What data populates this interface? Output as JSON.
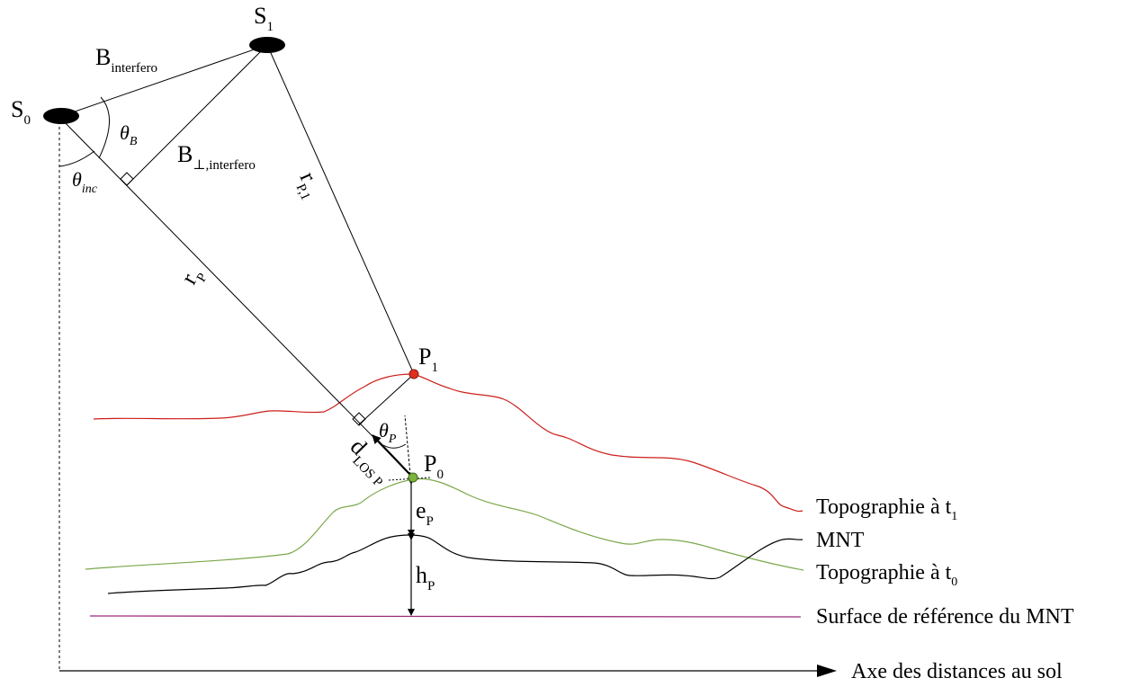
{
  "satellites": {
    "s0": {
      "letter": "S",
      "index": "0"
    },
    "s1": {
      "letter": "S",
      "index": "1"
    }
  },
  "points": {
    "p1": {
      "letter": "P",
      "index": "1",
      "color": "#e0301e"
    },
    "p0": {
      "letter": "P",
      "index": "0",
      "color": "#7db33a"
    }
  },
  "labels": {
    "baseline": {
      "main": "B",
      "sub": "interfero"
    },
    "baseline_perp": {
      "main": "B",
      "sub": "⊥,interfero"
    },
    "theta_b": {
      "symbol": "θ",
      "sub": "B"
    },
    "theta_inc": {
      "symbol": "θ",
      "sub": "inc"
    },
    "theta_p": {
      "symbol": "θ",
      "sub": "P"
    },
    "r_p": {
      "main": "r",
      "sub": "P"
    },
    "r_p1": {
      "main": "r",
      "sub": "P,1"
    },
    "d_los": {
      "main": "d",
      "sub": "LOS P"
    },
    "e_p": {
      "main": "e",
      "sub": "P"
    },
    "h_p": {
      "main": "h",
      "sub": "P"
    }
  },
  "legend": {
    "topo_t1": {
      "text": "Topographie à t",
      "sub": "1"
    },
    "mnt": {
      "text": "MNT"
    },
    "topo_t0": {
      "text": "Topographie à t",
      "sub": "0"
    },
    "reference": {
      "text": "Surface de référence du MNT"
    },
    "axis": {
      "text": "Axe des distances au sol"
    }
  },
  "colors": {
    "topo_t1": "#cc1f1a",
    "topo_t0": "#7aa84a",
    "mnt": "#000000",
    "reference": "#9b2a7a",
    "lines": "#000000"
  }
}
